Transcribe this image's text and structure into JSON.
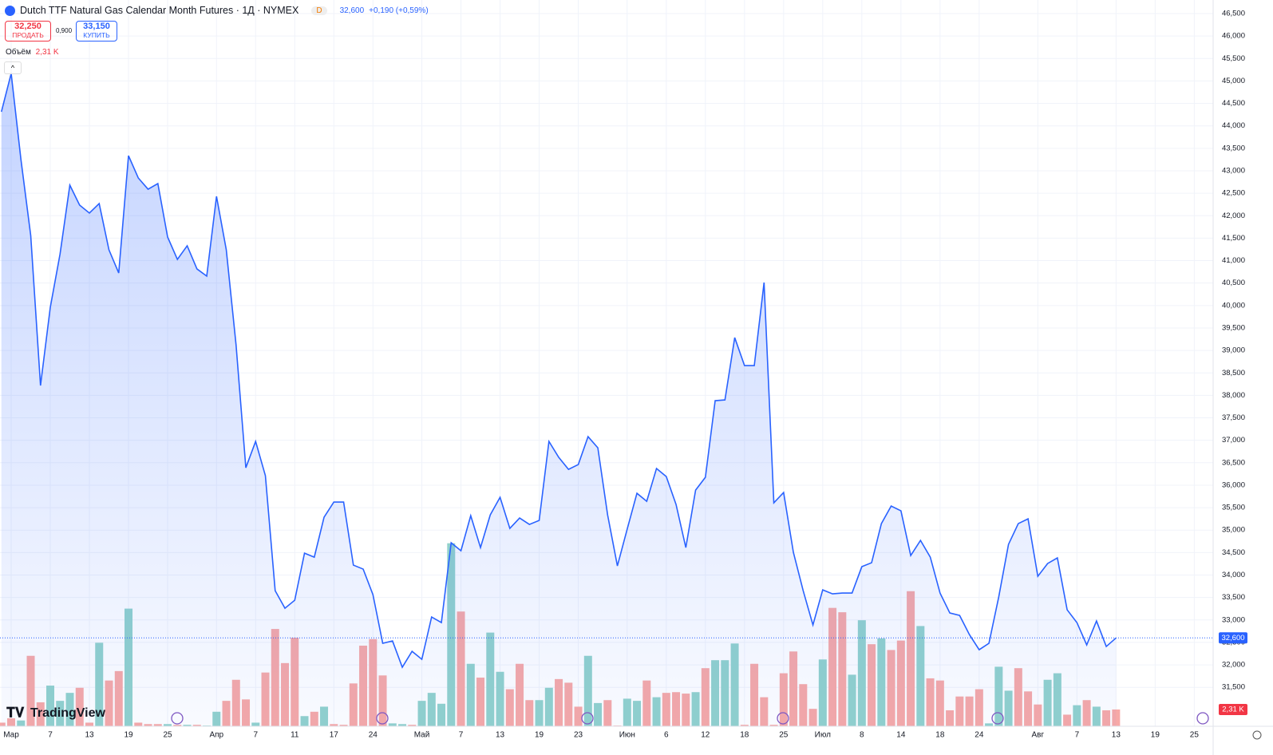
{
  "header": {
    "title": "Dutch TTF Natural Gas Calendar Month Futures · 1Д · NYMEX",
    "badge": "D",
    "price": "32,600",
    "change": "+0,190 (+0,59%)",
    "sell": {
      "price": "32,250",
      "label": "ПРОДАТЬ"
    },
    "spread": "0,900",
    "buy": {
      "price": "33,150",
      "label": "КУПИТЬ"
    },
    "logo": "TradingView"
  },
  "chart_data": {
    "type": "line",
    "color": "#2962ff",
    "values": [
      44314,
      45167,
      43248,
      41560,
      38219,
      39960,
      41150,
      42680,
      42235,
      42058,
      42270,
      41240,
      40725,
      43337,
      42840,
      42590,
      42715,
      41525,
      41027,
      41330,
      40815,
      40655,
      42430,
      41240,
      39125,
      36389,
      36975,
      36211,
      33652,
      33261,
      33439,
      34487,
      34398,
      35287,
      35625,
      35625,
      34221,
      34132,
      33563,
      32480,
      32533,
      31947,
      32302,
      32124,
      33066,
      32941,
      34718,
      34540,
      35322,
      34611,
      35340,
      35731,
      35038,
      35269,
      35127,
      35216,
      36975,
      36620,
      36353,
      36460,
      37082,
      36833,
      35340,
      34203,
      35020,
      35820,
      35642,
      36371,
      36193,
      35571,
      34611,
      35891,
      36176,
      37882,
      37899,
      39285,
      38663,
      38663,
      40512,
      35607,
      35838,
      34505,
      33652,
      32888,
      33670,
      33581,
      33599,
      33599,
      34186,
      34274,
      35145,
      35536,
      35429,
      34434,
      34771,
      34398,
      33599,
      33155,
      33101,
      32675,
      32337,
      32480,
      33510,
      34683,
      35145,
      35251,
      33972,
      34256,
      34381,
      33226,
      32941,
      32444,
      32977,
      32409,
      32600
    ],
    "last_value_label": "32,600",
    "volume": {
      "name": "Объём",
      "value_label": "2,31 K",
      "ylim": [
        0,
        100
      ],
      "values": [
        0.5,
        1.1,
        0.8,
        9.7,
        3.3,
        5.6,
        3.5,
        4.6,
        5.3,
        0.5,
        11.5,
        6.3,
        7.6,
        16.2,
        0.5,
        0.3,
        0.3,
        0.3,
        0.2,
        0.2,
        0.2,
        0.1,
        2.0,
        3.5,
        6.4,
        3.7,
        0.5,
        7.4,
        13.4,
        8.7,
        12.2,
        1.4,
        2.0,
        2.7,
        0.3,
        0.2,
        5.9,
        11.1,
        12.0,
        7.0,
        0.4,
        0.3,
        0.2,
        3.5,
        4.6,
        3.1,
        25.2,
        15.8,
        8.6,
        6.7,
        12.9,
        7.5,
        5.1,
        8.6,
        3.6,
        3.6,
        5.3,
        6.5,
        6.0,
        2.7,
        9.7,
        3.2,
        3.6,
        0.1,
        3.8,
        3.5,
        6.3,
        4.0,
        4.6,
        4.7,
        4.5,
        4.7,
        8.0,
        9.1,
        9.1,
        11.4,
        0.2,
        8.6,
        4.0,
        0.2,
        7.3,
        10.3,
        5.8,
        2.4,
        9.2,
        16.3,
        15.7,
        7.1,
        14.6,
        11.3,
        12.1,
        10.5,
        11.8,
        18.6,
        13.8,
        6.6,
        6.3,
        2.2,
        4.1,
        4.1,
        5.1,
        0.4,
        8.2,
        4.9,
        8.0,
        4.8,
        3.0,
        6.4,
        7.3,
        1.6,
        2.9,
        3.6,
        2.7,
        2.2,
        2.31
      ],
      "colors": [
        "#f7a9a7",
        "#f7a9a7",
        "#92d2cc",
        "#f7a9a7",
        "#f7a9a7",
        "#92d2cc",
        "#92d2cc",
        "#92d2cc",
        "#f7a9a7",
        "#f7a9a7",
        "#92d2cc",
        "#f7a9a7",
        "#f7a9a7",
        "#92d2cc",
        "#f7a9a7",
        "#f7a9a7",
        "#f7a9a7",
        "#92d2cc",
        "#f7a9a7",
        "#92d2cc",
        "#f7a9a7",
        "#92d2cc",
        "#92d2cc",
        "#f7a9a7",
        "#f7a9a7",
        "#f7a9a7",
        "#92d2cc",
        "#f7a9a7",
        "#f7a9a7",
        "#f7a9a7",
        "#f7a9a7",
        "#92d2cc",
        "#f7a9a7",
        "#92d2cc",
        "#f7a9a7",
        "#f7a9a7",
        "#f7a9a7",
        "#f7a9a7",
        "#f7a9a7",
        "#f7a9a7",
        "#92d2cc",
        "#92d2cc",
        "#f7a9a7",
        "#92d2cc",
        "#92d2cc",
        "#92d2cc",
        "#92d2cc",
        "#f7a9a7",
        "#92d2cc",
        "#f7a9a7",
        "#92d2cc",
        "#92d2cc",
        "#f7a9a7",
        "#f7a9a7",
        "#f7a9a7",
        "#92d2cc",
        "#92d2cc",
        "#f7a9a7",
        "#f7a9a7",
        "#f7a9a7",
        "#92d2cc",
        "#92d2cc",
        "#f7a9a7",
        "#f7a9a7",
        "#92d2cc",
        "#92d2cc",
        "#f7a9a7",
        "#92d2cc",
        "#f7a9a7",
        "#f7a9a7",
        "#f7a9a7",
        "#92d2cc",
        "#f7a9a7",
        "#92d2cc",
        "#92d2cc",
        "#92d2cc",
        "#f7a9a7",
        "#f7a9a7",
        "#f7a9a7",
        "#f7a9a7",
        "#f7a9a7",
        "#f7a9a7",
        "#f7a9a7",
        "#f7a9a7",
        "#92d2cc",
        "#f7a9a7",
        "#f7a9a7",
        "#92d2cc",
        "#92d2cc",
        "#f7a9a7",
        "#92d2cc",
        "#f7a9a7",
        "#f7a9a7",
        "#f7a9a7",
        "#92d2cc",
        "#f7a9a7",
        "#f7a9a7",
        "#f7a9a7",
        "#f7a9a7",
        "#f7a9a7",
        "#f7a9a7",
        "#92d2cc",
        "#92d2cc",
        "#92d2cc",
        "#f7a9a7",
        "#f7a9a7",
        "#f7a9a7",
        "#92d2cc",
        "#92d2cc",
        "#f7a9a7",
        "#92d2cc",
        "#f7a9a7",
        "#92d2cc",
        "#f7a9a7",
        "#f7a9a7"
      ]
    },
    "xlim": [
      -0.143,
      123.93
    ],
    "xticks": [
      {
        "value": 1,
        "label": "Мар"
      },
      {
        "value": 5,
        "label": "7"
      },
      {
        "value": 9,
        "label": "13"
      },
      {
        "value": 13,
        "label": "19"
      },
      {
        "value": 17,
        "label": "25"
      },
      {
        "value": 22,
        "label": "Апр"
      },
      {
        "value": 26,
        "label": "7"
      },
      {
        "value": 30,
        "label": "11"
      },
      {
        "value": 34,
        "label": "17"
      },
      {
        "value": 38,
        "label": "24"
      },
      {
        "value": 43,
        "label": "Май"
      },
      {
        "value": 47,
        "label": "7"
      },
      {
        "value": 51,
        "label": "13"
      },
      {
        "value": 55,
        "label": "19"
      },
      {
        "value": 59,
        "label": "23"
      },
      {
        "value": 64,
        "label": "Июн"
      },
      {
        "value": 68,
        "label": "6"
      },
      {
        "value": 72,
        "label": "12"
      },
      {
        "value": 76,
        "label": "18"
      },
      {
        "value": 80,
        "label": "25"
      },
      {
        "value": 84,
        "label": "Июл"
      },
      {
        "value": 88,
        "label": "8"
      },
      {
        "value": 92,
        "label": "14"
      },
      {
        "value": 96,
        "label": "18"
      },
      {
        "value": 100,
        "label": "24"
      },
      {
        "value": 106,
        "label": "Авг"
      },
      {
        "value": 110,
        "label": "7"
      },
      {
        "value": 114,
        "label": "13"
      },
      {
        "value": 118,
        "label": "19"
      },
      {
        "value": 122,
        "label": "25"
      }
    ],
    "ylim": [
      30633,
      46802
    ],
    "yticks": [
      {
        "value": 31500,
        "label": "31,500"
      },
      {
        "value": 32000,
        "label": "32,000"
      },
      {
        "value": 32500,
        "label": "32,500"
      },
      {
        "value": 33000,
        "label": "33,000"
      },
      {
        "value": 33500,
        "label": "33,500"
      },
      {
        "value": 34000,
        "label": "34,000"
      },
      {
        "value": 34500,
        "label": "34,500"
      },
      {
        "value": 35000,
        "label": "35,000"
      },
      {
        "value": 35500,
        "label": "35,500"
      },
      {
        "value": 36000,
        "label": "36,000"
      },
      {
        "value": 36500,
        "label": "36,500"
      },
      {
        "value": 37000,
        "label": "37,000"
      },
      {
        "value": 37500,
        "label": "37,500"
      },
      {
        "value": 38000,
        "label": "38,000"
      },
      {
        "value": 38500,
        "label": "38,500"
      },
      {
        "value": 39000,
        "label": "39,000"
      },
      {
        "value": 39500,
        "label": "39,500"
      },
      {
        "value": 40000,
        "label": "40,000"
      },
      {
        "value": 40500,
        "label": "40,500"
      },
      {
        "value": 41000,
        "label": "41,000"
      },
      {
        "value": 41500,
        "label": "41,500"
      },
      {
        "value": 42000,
        "label": "42,000"
      },
      {
        "value": 42500,
        "label": "42,500"
      },
      {
        "value": 43000,
        "label": "43,000"
      },
      {
        "value": 43500,
        "label": "43,500"
      },
      {
        "value": 44000,
        "label": "44,000"
      },
      {
        "value": 44500,
        "label": "44,500"
      },
      {
        "value": 45000,
        "label": "45,000"
      },
      {
        "value": 45500,
        "label": "45,500"
      },
      {
        "value": 46000,
        "label": "46,000"
      },
      {
        "value": 46500,
        "label": "46,500"
      }
    ],
    "grid": true
  }
}
